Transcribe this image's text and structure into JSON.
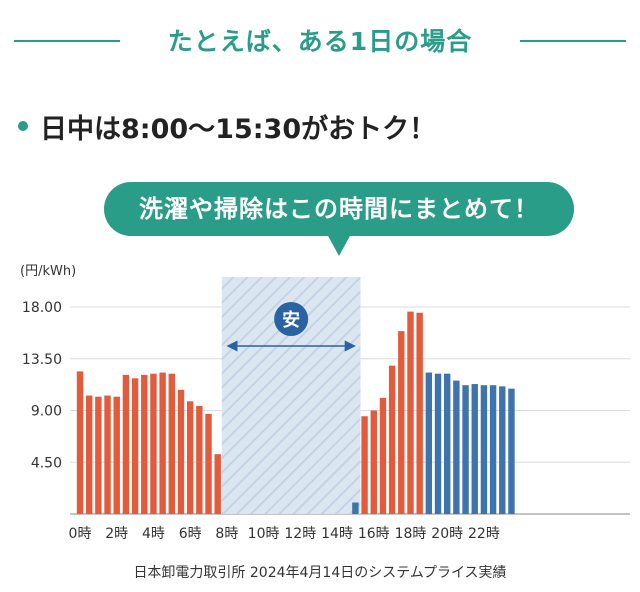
{
  "header": {
    "title": "たとえば、ある1日の場合"
  },
  "highlight": {
    "text": "日中は8:00〜15:30がおトク！"
  },
  "callout": {
    "text": "洗濯や掃除はこの時間にまとめて！"
  },
  "cheap_badge": "安",
  "footer": {
    "source": "日本卸電力取引所 2024年4月14日のシステムプライス実績"
  },
  "colors": {
    "accent": "#2a9d88",
    "orange": "#e15b3c",
    "blue": "#3f73ad",
    "cheap_fill": "#dce6f0",
    "cheap_stripe": "#c3d3e5",
    "badge": "#2a62a2",
    "arrow": "#2a62a2"
  },
  "chart_data": {
    "type": "bar",
    "ylabel": "(円/kWh)",
    "ylim": [
      0,
      18.0
    ],
    "yticks": [
      "4.50",
      "9.00",
      "13.50",
      "18.00"
    ],
    "ytick_values": [
      4.5,
      9.0,
      13.5,
      18.0
    ],
    "xticks": [
      "0時",
      "2時",
      "4時",
      "6時",
      "8時",
      "10時",
      "12時",
      "14時",
      "16時",
      "18時",
      "20時",
      "22時"
    ],
    "xtick_hours": [
      0,
      2,
      4,
      6,
      8,
      10,
      12,
      14,
      16,
      18,
      20,
      22
    ],
    "cheap_period": {
      "start_hour": 8,
      "end_hour": 15.5
    },
    "x_hours": [
      0,
      0.5,
      1,
      1.5,
      2,
      2.5,
      3,
      3.5,
      4,
      4.5,
      5,
      5.5,
      6,
      6.5,
      7,
      7.5,
      8,
      8.5,
      9,
      9.5,
      10,
      10.5,
      11,
      11.5,
      12,
      12.5,
      13,
      13.5,
      14,
      14.5,
      15,
      15.5,
      16,
      16.5,
      17,
      17.5,
      18,
      18.5,
      19,
      19.5,
      20,
      20.5,
      21,
      21.5,
      22,
      22.5,
      23,
      23.5
    ],
    "values": [
      12.4,
      10.3,
      10.2,
      10.3,
      10.2,
      12.1,
      11.8,
      12.1,
      12.2,
      12.3,
      12.2,
      10.8,
      9.8,
      9.4,
      8.7,
      5.2,
      0.01,
      0.01,
      0.01,
      0.01,
      0.01,
      0.01,
      0.01,
      0.01,
      0.01,
      0.01,
      0.01,
      0.01,
      0.01,
      0.01,
      1.0,
      8.5,
      9.0,
      10.1,
      12.9,
      15.9,
      17.6,
      17.5,
      12.3,
      12.2,
      12.2,
      11.6,
      11.2,
      11.3,
      11.2,
      11.2,
      11.1,
      10.9
    ],
    "bar_colors": [
      "orange",
      "orange",
      "orange",
      "orange",
      "orange",
      "orange",
      "orange",
      "orange",
      "orange",
      "orange",
      "orange",
      "orange",
      "orange",
      "orange",
      "orange",
      "orange",
      "orange",
      "orange",
      "orange",
      "orange",
      "orange",
      "orange",
      "orange",
      "orange",
      "orange",
      "orange",
      "orange",
      "orange",
      "orange",
      "orange",
      "blue",
      "orange",
      "orange",
      "orange",
      "orange",
      "orange",
      "orange",
      "orange",
      "blue",
      "blue",
      "blue",
      "blue",
      "blue",
      "blue",
      "blue",
      "blue",
      "blue",
      "blue"
    ]
  }
}
